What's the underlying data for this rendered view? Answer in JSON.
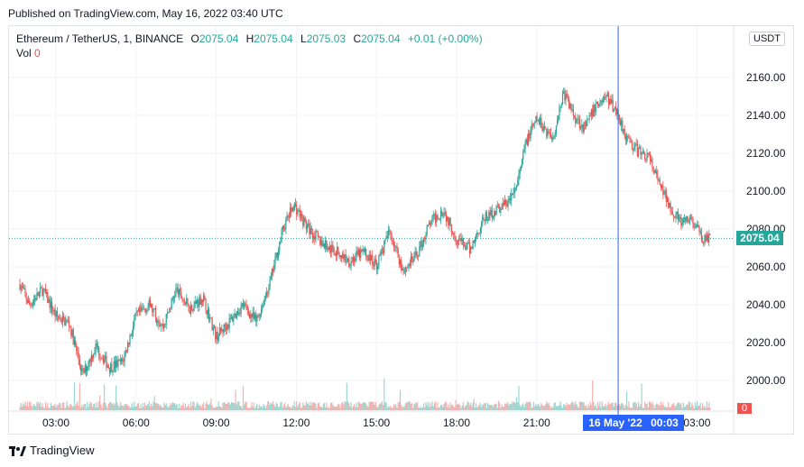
{
  "published": "Published on TradingView.com, May 16, 2022 03:40 UTC",
  "legend": {
    "symbol": "Ethereum / TetherUS, 1, BINANCE",
    "o_label": "O",
    "o_value": "2075.04",
    "h_label": "H",
    "h_value": "2075.04",
    "l_label": "L",
    "l_value": "2075.03",
    "c_label": "C",
    "c_value": "2075.04",
    "change": "+0.01 (+0.00%)",
    "vol_label": "Vol",
    "vol_value": "0"
  },
  "currency_button": "USDT",
  "last_price_tag": "2075.04",
  "volume_tag": "0",
  "crosshair_time": {
    "date": "16 May '22",
    "time": "00:03"
  },
  "brand": "TradingView",
  "colors": {
    "up": "#26a69a",
    "down": "#ef5350",
    "crosshair": "#2962ff",
    "grid": "#f0f3fa",
    "price_line": "#26a69a"
  },
  "chart_data": {
    "type": "candlestick",
    "symbol": "ETH/USDT",
    "interval": "1",
    "y_ticks": [
      2000,
      2020,
      2040,
      2060,
      2080,
      2100,
      2120,
      2140,
      2160
    ],
    "x_ticks": [
      "03:00",
      "06:00",
      "09:00",
      "12:00",
      "15:00",
      "18:00",
      "21:00",
      "03:00"
    ],
    "ylim": [
      1990,
      2182
    ],
    "last_price": 2075.04,
    "crosshair_x_hours": 24.05,
    "price_series": {
      "x_hours": [
        1.65,
        2.0,
        2.5,
        3.0,
        3.5,
        4.0,
        4.5,
        5.0,
        5.5,
        6.0,
        6.5,
        7.0,
        7.5,
        8.0,
        8.5,
        9.0,
        9.5,
        10.0,
        10.5,
        11.0,
        11.5,
        11.9,
        12.4,
        13.0,
        13.5,
        14.0,
        14.5,
        15.0,
        15.5,
        16.0,
        16.5,
        17.0,
        17.5,
        18.0,
        18.5,
        19.0,
        19.5,
        20.0,
        20.3,
        20.6,
        21.0,
        21.3,
        21.6,
        22.0,
        22.4,
        22.8,
        23.2,
        23.6,
        24.0,
        24.4,
        24.8,
        25.2,
        25.6,
        26.0,
        26.4,
        26.8,
        27.2,
        27.5
      ],
      "close": [
        2051,
        2040,
        2048,
        2034,
        2030,
        2003,
        2018,
        2007,
        2010,
        2034,
        2040,
        2028,
        2048,
        2038,
        2044,
        2023,
        2031,
        2040,
        2031,
        2051,
        2080,
        2093,
        2081,
        2072,
        2068,
        2063,
        2068,
        2061,
        2079,
        2058,
        2066,
        2083,
        2090,
        2075,
        2069,
        2085,
        2090,
        2095,
        2105,
        2126,
        2138,
        2133,
        2128,
        2152,
        2140,
        2133,
        2145,
        2150,
        2142,
        2127,
        2121,
        2118,
        2103,
        2092,
        2083,
        2085,
        2075,
        2075.04
      ]
    }
  }
}
